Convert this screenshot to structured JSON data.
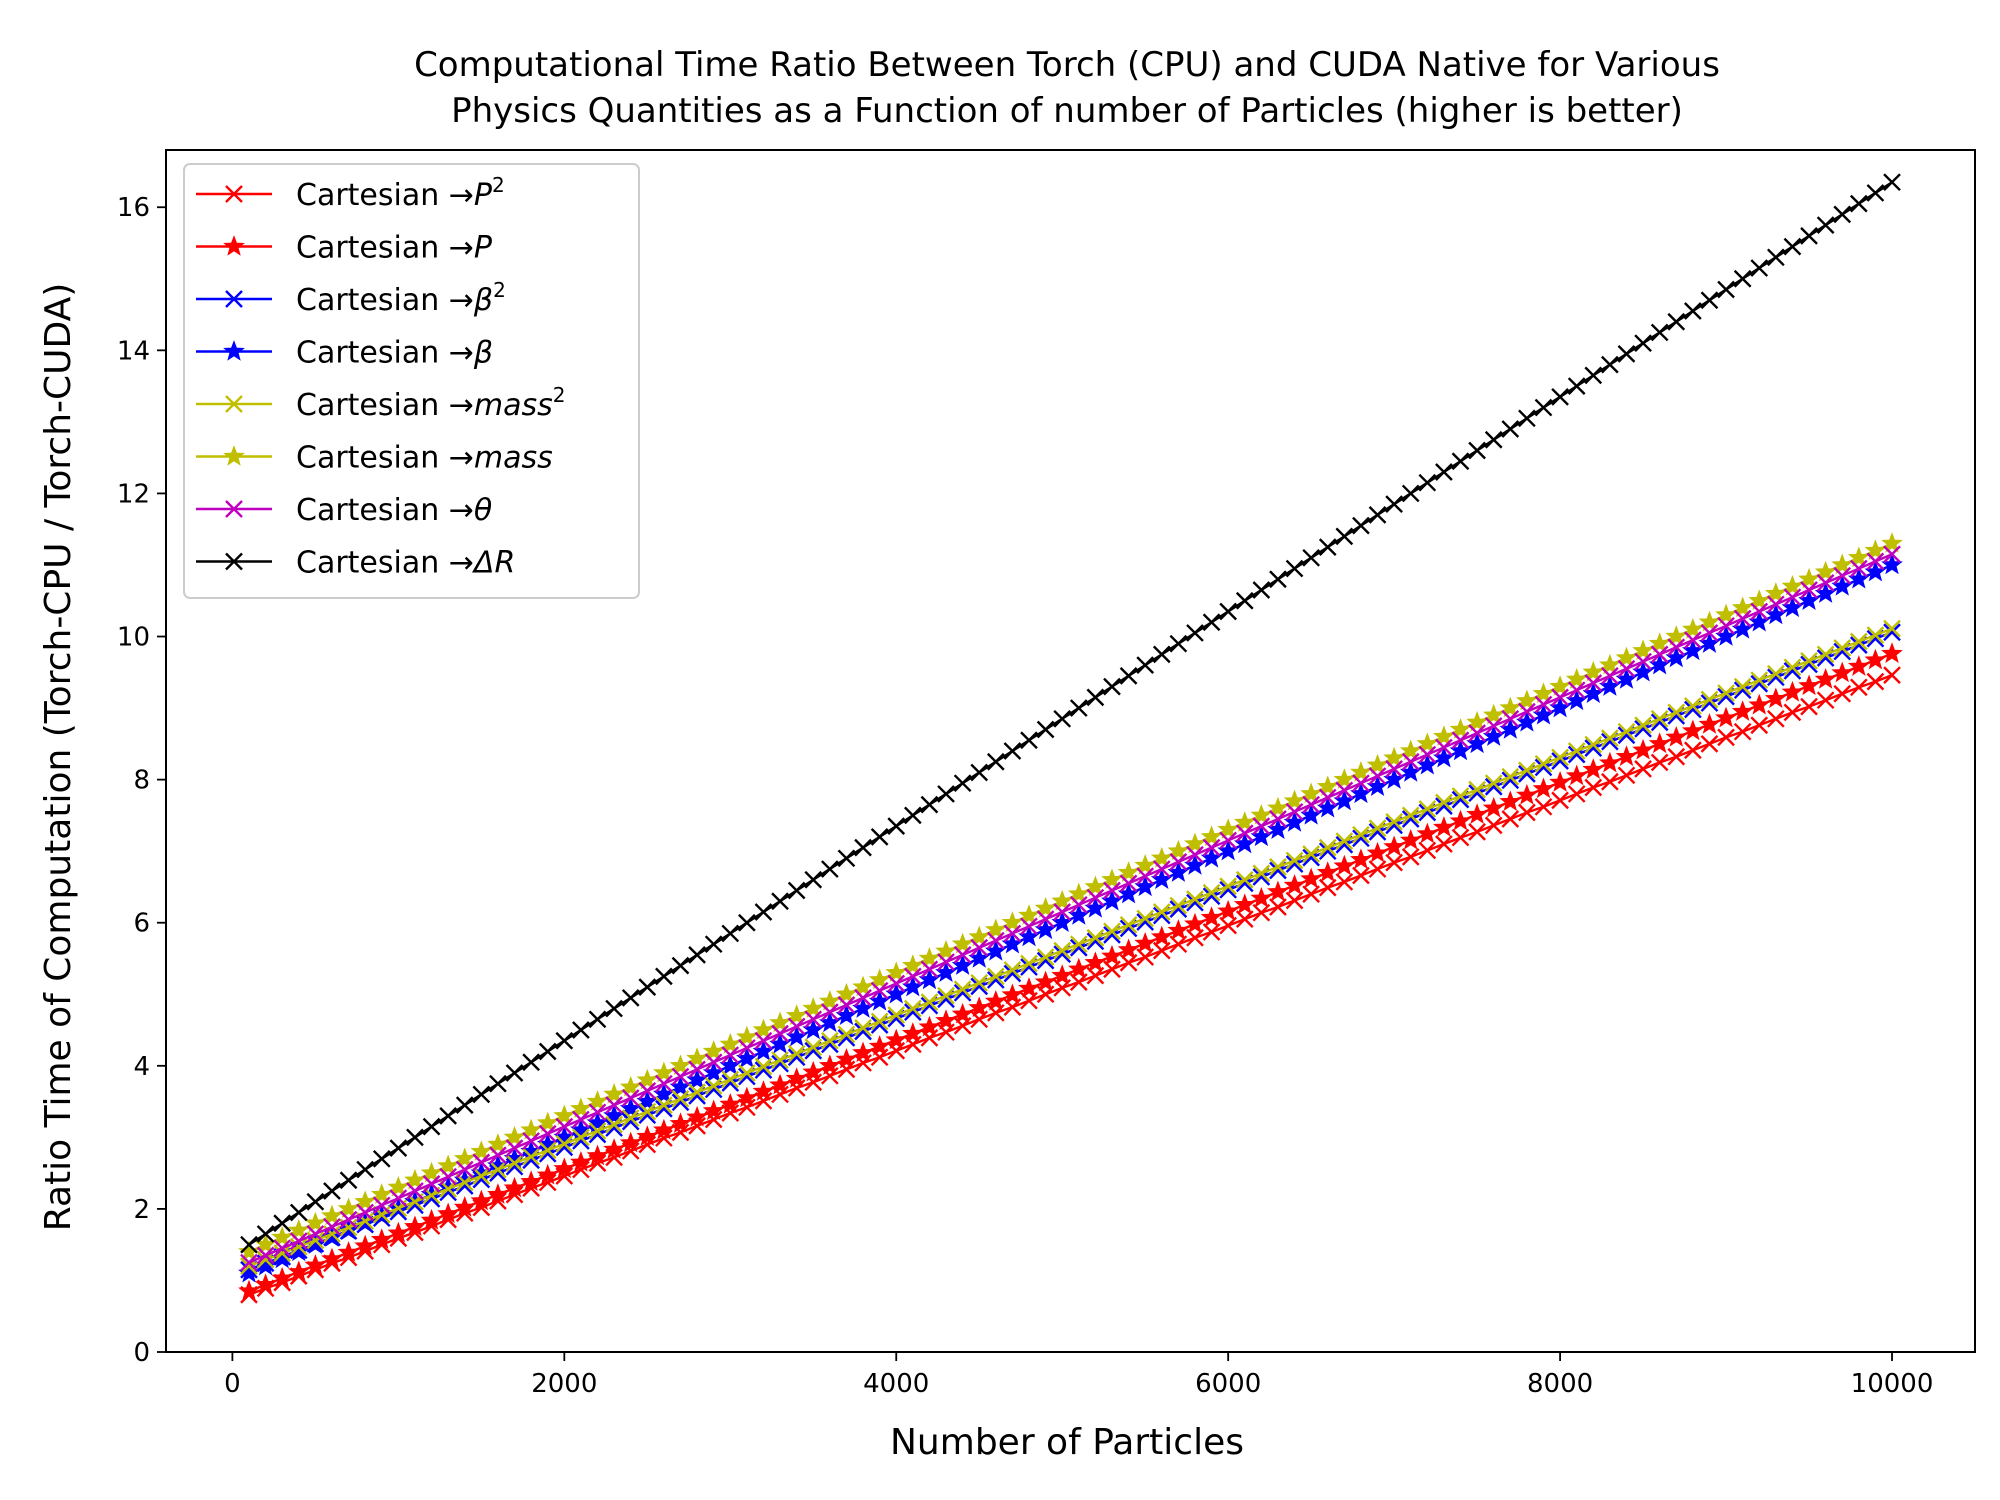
{
  "chart_data": {
    "type": "line",
    "title": "Computational Time Ratio Between Torch (CPU) and CUDA Native for Various Physics Quantities as a Function of number of Particles (higher is better)",
    "title_lines": [
      "Computational Time Ratio Between Torch (CPU) and CUDA Native for Various",
      "Physics Quantities as a Function of number of Particles (higher is better)"
    ],
    "xlabel": "Number of Particles",
    "ylabel": "Ratio Time of Computation (Torch-CPU / Torch-CUDA)",
    "xlim": [
      -400,
      10500
    ],
    "ylim": [
      0,
      16.8
    ],
    "x_ticks": [
      0,
      2000,
      4000,
      6000,
      8000,
      10000
    ],
    "x_tick_labels": [
      "0",
      "2000",
      "4000",
      "6000",
      "8000",
      "10000"
    ],
    "y_ticks": [
      0,
      2,
      4,
      6,
      8,
      10,
      12,
      14,
      16
    ],
    "y_tick_labels": [
      "0",
      "2",
      "4",
      "6",
      "8",
      "10",
      "12",
      "14",
      "16"
    ],
    "grid": false,
    "legend_position": "top-left",
    "x": [
      100,
      200,
      300,
      400,
      500,
      600,
      700,
      800,
      900,
      1000,
      1100,
      1200,
      1300,
      1400,
      1500,
      1600,
      1700,
      1800,
      1900,
      2000,
      2100,
      2200,
      2300,
      2400,
      2500,
      2600,
      2700,
      2800,
      2900,
      3000,
      3100,
      3200,
      3300,
      3400,
      3500,
      3600,
      3700,
      3800,
      3900,
      4000,
      4100,
      4200,
      4300,
      4400,
      4500,
      4600,
      4700,
      4800,
      4900,
      5000,
      5100,
      5200,
      5300,
      5400,
      5500,
      5600,
      5700,
      5800,
      5900,
      6000,
      6100,
      6200,
      6300,
      6400,
      6500,
      6600,
      6700,
      6800,
      6900,
      7000,
      7100,
      7200,
      7300,
      7400,
      7500,
      7600,
      7700,
      7800,
      7900,
      8000,
      8100,
      8200,
      8300,
      8400,
      8500,
      8600,
      8700,
      8800,
      8900,
      9000,
      9100,
      9200,
      9300,
      9400,
      9500,
      9600,
      9700,
      9800,
      9900,
      10000
    ],
    "series": [
      {
        "name": "Cartesian →P²",
        "legend_prefix": "Cartesian →",
        "legend_var": "P",
        "legend_sup": "2",
        "color": "#ff0000",
        "marker": "x",
        "values": [
          0.8,
          0.89,
          0.97,
          1.06,
          1.15,
          1.24,
          1.32,
          1.41,
          1.5,
          1.59,
          1.67,
          1.76,
          1.85,
          1.94,
          2.02,
          2.11,
          2.2,
          2.29,
          2.37,
          2.46,
          2.55,
          2.64,
          2.72,
          2.81,
          2.9,
          2.99,
          3.07,
          3.16,
          3.25,
          3.34,
          3.42,
          3.51,
          3.6,
          3.69,
          3.77,
          3.86,
          3.95,
          4.04,
          4.12,
          4.21,
          4.3,
          4.39,
          4.47,
          4.56,
          4.65,
          4.74,
          4.82,
          4.91,
          5.0,
          5.09,
          5.17,
          5.26,
          5.35,
          5.44,
          5.52,
          5.61,
          5.7,
          5.79,
          5.87,
          5.96,
          6.05,
          6.14,
          6.22,
          6.31,
          6.4,
          6.49,
          6.57,
          6.66,
          6.75,
          6.84,
          6.92,
          7.01,
          7.1,
          7.19,
          7.27,
          7.36,
          7.45,
          7.54,
          7.62,
          7.71,
          7.8,
          7.89,
          7.97,
          8.06,
          8.15,
          8.24,
          8.32,
          8.41,
          8.5,
          8.59,
          8.67,
          8.76,
          8.85,
          8.94,
          9.02,
          9.11,
          9.2,
          9.29,
          9.37,
          9.46
        ]
      },
      {
        "name": "Cartesian →P",
        "legend_prefix": "Cartesian →",
        "legend_var": "P",
        "legend_sup": "",
        "color": "#ff0000",
        "marker": "star",
        "values": [
          0.85,
          0.94,
          1.03,
          1.12,
          1.21,
          1.3,
          1.39,
          1.48,
          1.57,
          1.66,
          1.75,
          1.84,
          1.93,
          2.02,
          2.11,
          2.2,
          2.29,
          2.38,
          2.47,
          2.56,
          2.65,
          2.74,
          2.83,
          2.92,
          3.01,
          3.1,
          3.19,
          3.28,
          3.37,
          3.46,
          3.55,
          3.64,
          3.73,
          3.82,
          3.91,
          4.0,
          4.09,
          4.18,
          4.27,
          4.36,
          4.45,
          4.54,
          4.63,
          4.72,
          4.81,
          4.9,
          4.99,
          5.08,
          5.17,
          5.26,
          5.35,
          5.44,
          5.53,
          5.62,
          5.71,
          5.8,
          5.89,
          5.98,
          6.07,
          6.16,
          6.25,
          6.34,
          6.43,
          6.52,
          6.61,
          6.7,
          6.79,
          6.88,
          6.97,
          7.06,
          7.15,
          7.24,
          7.33,
          7.42,
          7.51,
          7.6,
          7.69,
          7.78,
          7.87,
          7.96,
          8.05,
          8.14,
          8.23,
          8.32,
          8.41,
          8.5,
          8.59,
          8.68,
          8.77,
          8.86,
          8.95,
          9.04,
          9.13,
          9.22,
          9.31,
          9.4,
          9.49,
          9.58,
          9.67,
          9.76
        ]
      },
      {
        "name": "Cartesian →β²",
        "legend_prefix": "Cartesian →",
        "legend_var": "β",
        "legend_sup": "2",
        "color": "#0000ff",
        "marker": "x",
        "values": [
          1.15,
          1.24,
          1.33,
          1.42,
          1.51,
          1.6,
          1.69,
          1.78,
          1.87,
          1.96,
          2.05,
          2.14,
          2.23,
          2.32,
          2.41,
          2.5,
          2.59,
          2.68,
          2.77,
          2.86,
          2.95,
          3.04,
          3.13,
          3.22,
          3.31,
          3.4,
          3.49,
          3.58,
          3.67,
          3.76,
          3.85,
          3.94,
          4.03,
          4.12,
          4.21,
          4.3,
          4.39,
          4.48,
          4.57,
          4.66,
          4.75,
          4.84,
          4.93,
          5.02,
          5.11,
          5.2,
          5.29,
          5.38,
          5.47,
          5.56,
          5.65,
          5.74,
          5.83,
          5.92,
          6.01,
          6.1,
          6.19,
          6.28,
          6.37,
          6.46,
          6.55,
          6.64,
          6.73,
          6.82,
          6.91,
          7.0,
          7.09,
          7.18,
          7.27,
          7.36,
          7.45,
          7.54,
          7.63,
          7.72,
          7.81,
          7.9,
          7.99,
          8.08,
          8.17,
          8.26,
          8.35,
          8.44,
          8.53,
          8.62,
          8.71,
          8.8,
          8.89,
          8.98,
          9.07,
          9.16,
          9.25,
          9.34,
          9.43,
          9.52,
          9.61,
          9.7,
          9.79,
          9.88,
          9.97,
          10.06
        ]
      },
      {
        "name": "Cartesian →β",
        "legend_prefix": "Cartesian →",
        "legend_var": "β",
        "legend_sup": "",
        "color": "#0000ff",
        "marker": "star",
        "values": [
          1.1,
          1.2,
          1.3,
          1.4,
          1.5,
          1.6,
          1.7,
          1.8,
          1.9,
          2.0,
          2.1,
          2.2,
          2.3,
          2.4,
          2.5,
          2.6,
          2.7,
          2.8,
          2.9,
          3.0,
          3.1,
          3.2,
          3.3,
          3.4,
          3.5,
          3.6,
          3.7,
          3.8,
          3.9,
          4.0,
          4.1,
          4.2,
          4.3,
          4.4,
          4.5,
          4.6,
          4.7,
          4.8,
          4.9,
          5.0,
          5.1,
          5.2,
          5.3,
          5.4,
          5.5,
          5.6,
          5.7,
          5.8,
          5.9,
          6.0,
          6.1,
          6.2,
          6.3,
          6.4,
          6.5,
          6.6,
          6.7,
          6.8,
          6.9,
          7.0,
          7.1,
          7.2,
          7.3,
          7.4,
          7.5,
          7.6,
          7.7,
          7.8,
          7.9,
          8.0,
          8.1,
          8.2,
          8.3,
          8.4,
          8.5,
          8.6,
          8.7,
          8.8,
          8.9,
          9.0,
          9.1,
          9.2,
          9.3,
          9.4,
          9.5,
          9.6,
          9.7,
          9.8,
          9.9,
          10.0,
          10.1,
          10.2,
          10.3,
          10.4,
          10.5,
          10.6,
          10.7,
          10.8,
          10.9,
          11.0
        ]
      },
      {
        "name": "Cartesian →mass²",
        "legend_prefix": "Cartesian →",
        "legend_var": "mass",
        "legend_sup": "2",
        "color": "#bfbf00",
        "marker": "x",
        "values": [
          1.2,
          1.29,
          1.38,
          1.47,
          1.56,
          1.65,
          1.74,
          1.83,
          1.92,
          2.01,
          2.1,
          2.19,
          2.28,
          2.37,
          2.46,
          2.55,
          2.64,
          2.73,
          2.82,
          2.91,
          3.0,
          3.09,
          3.18,
          3.27,
          3.36,
          3.45,
          3.54,
          3.63,
          3.72,
          3.81,
          3.9,
          3.99,
          4.08,
          4.17,
          4.26,
          4.35,
          4.44,
          4.53,
          4.62,
          4.71,
          4.8,
          4.89,
          4.98,
          5.07,
          5.16,
          5.25,
          5.34,
          5.43,
          5.52,
          5.61,
          5.7,
          5.79,
          5.88,
          5.97,
          6.06,
          6.15,
          6.24,
          6.33,
          6.42,
          6.51,
          6.6,
          6.69,
          6.78,
          6.87,
          6.96,
          7.05,
          7.14,
          7.23,
          7.32,
          7.41,
          7.5,
          7.59,
          7.68,
          7.77,
          7.86,
          7.95,
          8.04,
          8.13,
          8.22,
          8.31,
          8.4,
          8.49,
          8.58,
          8.67,
          8.76,
          8.85,
          8.94,
          9.03,
          9.12,
          9.21,
          9.3,
          9.39,
          9.48,
          9.57,
          9.66,
          9.75,
          9.84,
          9.93,
          10.02,
          10.11
        ]
      },
      {
        "name": "Cartesian →mass",
        "legend_prefix": "Cartesian →",
        "legend_var": "mass",
        "legend_sup": "",
        "color": "#bfbf00",
        "marker": "star",
        "values": [
          1.4,
          1.5,
          1.6,
          1.7,
          1.8,
          1.9,
          2.0,
          2.1,
          2.2,
          2.3,
          2.4,
          2.5,
          2.6,
          2.7,
          2.8,
          2.9,
          3.0,
          3.1,
          3.2,
          3.3,
          3.4,
          3.5,
          3.6,
          3.7,
          3.8,
          3.9,
          4.0,
          4.1,
          4.2,
          4.3,
          4.4,
          4.5,
          4.6,
          4.7,
          4.8,
          4.9,
          5.0,
          5.1,
          5.2,
          5.3,
          5.4,
          5.5,
          5.6,
          5.7,
          5.8,
          5.9,
          6.0,
          6.1,
          6.2,
          6.3,
          6.4,
          6.5,
          6.6,
          6.7,
          6.8,
          6.9,
          7.0,
          7.1,
          7.2,
          7.3,
          7.4,
          7.5,
          7.6,
          7.7,
          7.8,
          7.9,
          8.0,
          8.1,
          8.2,
          8.3,
          8.4,
          8.5,
          8.6,
          8.7,
          8.8,
          8.9,
          9.0,
          9.1,
          9.2,
          9.3,
          9.4,
          9.5,
          9.6,
          9.7,
          9.8,
          9.9,
          10.0,
          10.1,
          10.2,
          10.3,
          10.4,
          10.5,
          10.6,
          10.7,
          10.8,
          10.9,
          11.0,
          11.1,
          11.2,
          11.3
        ]
      },
      {
        "name": "Cartesian →θ",
        "legend_prefix": "Cartesian →",
        "legend_var": "θ",
        "legend_sup": "",
        "color": "#bf00bf",
        "marker": "x",
        "values": [
          1.25,
          1.35,
          1.45,
          1.55,
          1.65,
          1.75,
          1.85,
          1.95,
          2.05,
          2.15,
          2.25,
          2.35,
          2.45,
          2.55,
          2.65,
          2.75,
          2.85,
          2.95,
          3.05,
          3.15,
          3.25,
          3.35,
          3.45,
          3.55,
          3.65,
          3.75,
          3.85,
          3.95,
          4.05,
          4.15,
          4.25,
          4.35,
          4.45,
          4.55,
          4.65,
          4.75,
          4.85,
          4.95,
          5.05,
          5.15,
          5.25,
          5.35,
          5.45,
          5.55,
          5.65,
          5.75,
          5.85,
          5.95,
          6.05,
          6.15,
          6.25,
          6.35,
          6.45,
          6.55,
          6.65,
          6.75,
          6.85,
          6.95,
          7.05,
          7.15,
          7.25,
          7.35,
          7.45,
          7.55,
          7.65,
          7.75,
          7.85,
          7.95,
          8.05,
          8.15,
          8.25,
          8.35,
          8.45,
          8.55,
          8.65,
          8.75,
          8.85,
          8.95,
          9.05,
          9.15,
          9.25,
          9.35,
          9.45,
          9.55,
          9.65,
          9.75,
          9.85,
          9.95,
          10.05,
          10.15,
          10.25,
          10.35,
          10.45,
          10.55,
          10.65,
          10.75,
          10.85,
          10.95,
          11.05,
          11.15
        ]
      },
      {
        "name": "Cartesian →ΔR",
        "legend_prefix": "Cartesian →",
        "legend_var": "ΔR",
        "legend_sup": "",
        "color": "#000000",
        "marker": "x",
        "values": [
          1.5,
          1.65,
          1.8,
          1.95,
          2.1,
          2.25,
          2.4,
          2.55,
          2.7,
          2.85,
          3.0,
          3.15,
          3.3,
          3.45,
          3.6,
          3.75,
          3.9,
          4.05,
          4.2,
          4.35,
          4.5,
          4.65,
          4.8,
          4.95,
          5.1,
          5.25,
          5.4,
          5.55,
          5.7,
          5.85,
          6.0,
          6.15,
          6.3,
          6.45,
          6.6,
          6.75,
          6.9,
          7.05,
          7.2,
          7.35,
          7.5,
          7.65,
          7.8,
          7.95,
          8.1,
          8.25,
          8.4,
          8.55,
          8.7,
          8.85,
          9.0,
          9.15,
          9.3,
          9.45,
          9.6,
          9.75,
          9.9,
          10.05,
          10.2,
          10.35,
          10.5,
          10.65,
          10.8,
          10.95,
          11.1,
          11.25,
          11.4,
          11.55,
          11.7,
          11.85,
          12.0,
          12.15,
          12.3,
          12.45,
          12.6,
          12.75,
          12.9,
          13.05,
          13.2,
          13.35,
          13.5,
          13.65,
          13.8,
          13.95,
          14.1,
          14.25,
          14.4,
          14.55,
          14.7,
          14.85,
          15.0,
          15.15,
          15.3,
          15.45,
          15.6,
          15.75,
          15.9,
          16.05,
          16.2,
          16.35
        ]
      }
    ]
  }
}
